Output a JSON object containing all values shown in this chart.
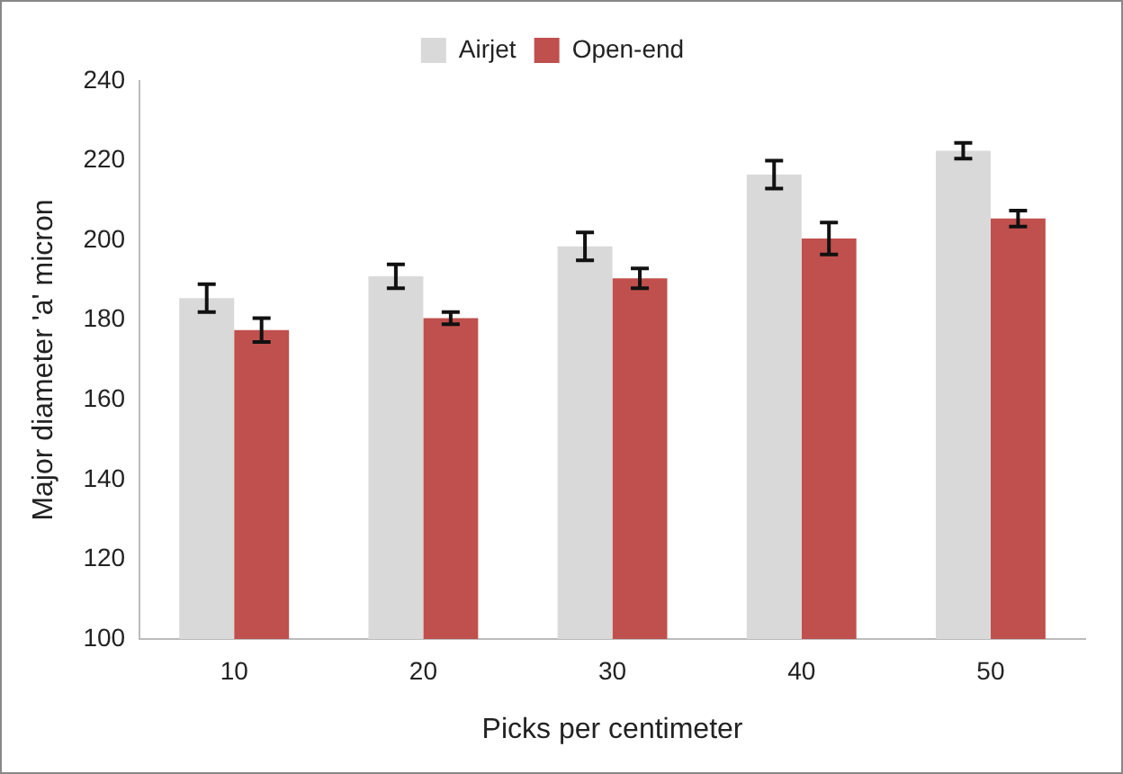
{
  "chart_data": {
    "type": "bar",
    "xlabel": "Picks per centimeter",
    "ylabel": "Major diameter 'a' micron",
    "categories": [
      "10",
      "20",
      "30",
      "40",
      "50"
    ],
    "series": [
      {
        "name": "Airjet",
        "color": "#d9d9d9",
        "values": [
          185.5,
          191,
          198.5,
          216.5,
          222.5
        ],
        "errors": [
          3.5,
          3,
          3.5,
          3.5,
          2
        ]
      },
      {
        "name": "Open-end",
        "color": "#c0504d",
        "values": [
          177.5,
          180.5,
          190.5,
          200.5,
          205.5
        ],
        "errors": [
          3,
          1.5,
          2.5,
          4,
          2
        ]
      }
    ],
    "ylim": [
      100,
      240
    ],
    "yticks": [
      100,
      120,
      140,
      160,
      180,
      200,
      220,
      240
    ],
    "grid": false,
    "legend": "top"
  }
}
